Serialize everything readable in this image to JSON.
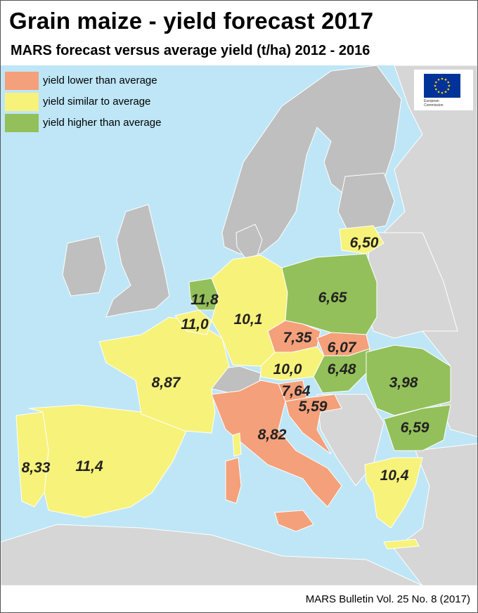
{
  "title": "Grain maize - yield forecast 2017",
  "subtitle": "MARS forecast versus average yield (t/ha) 2012 - 2016",
  "credit": "MARS Bulletin Vol. 25 No. 8 (2017)",
  "legend": [
    {
      "label": "yield lower than average",
      "color": "#f4a07a"
    },
    {
      "label": "yield similar to average",
      "color": "#f7f27a"
    },
    {
      "label": "yield higher than average",
      "color": "#93c05a"
    }
  ],
  "colors": {
    "sea": "#bee6f6",
    "non_eu_land": "#d6d6d6",
    "no_data_land": "#bfbfbf",
    "lower": "#f4a07a",
    "similar": "#f7f27a",
    "higher": "#93c05a"
  },
  "logo": {
    "icon": "eu-flag-icon",
    "line1": "European",
    "line2": "Commission"
  },
  "countries": {
    "lithuania": {
      "value": "6,50",
      "category": "similar"
    },
    "poland": {
      "value": "6,65",
      "category": "higher"
    },
    "netherlands": {
      "value": "11,8",
      "category": "higher"
    },
    "belgium": {
      "value": "11,0",
      "category": "similar"
    },
    "germany": {
      "value": "10,1",
      "category": "similar"
    },
    "czechia": {
      "value": "7,35",
      "category": "lower"
    },
    "slovakia": {
      "value": "6,07",
      "category": "lower"
    },
    "austria": {
      "value": "10,0",
      "category": "similar"
    },
    "hungary": {
      "value": "6,48",
      "category": "higher"
    },
    "romania": {
      "value": "3,98",
      "category": "higher"
    },
    "slovenia": {
      "value": "7,64",
      "category": "lower"
    },
    "croatia": {
      "value": "5,59",
      "category": "lower"
    },
    "france": {
      "value": "8,87",
      "category": "similar"
    },
    "bulgaria": {
      "value": "6,59",
      "category": "higher"
    },
    "italy": {
      "value": "8,82",
      "category": "lower"
    },
    "portugal": {
      "value": "8,33",
      "category": "similar"
    },
    "spain": {
      "value": "11,4",
      "category": "similar"
    },
    "greece": {
      "value": "10,4",
      "category": "similar"
    }
  }
}
